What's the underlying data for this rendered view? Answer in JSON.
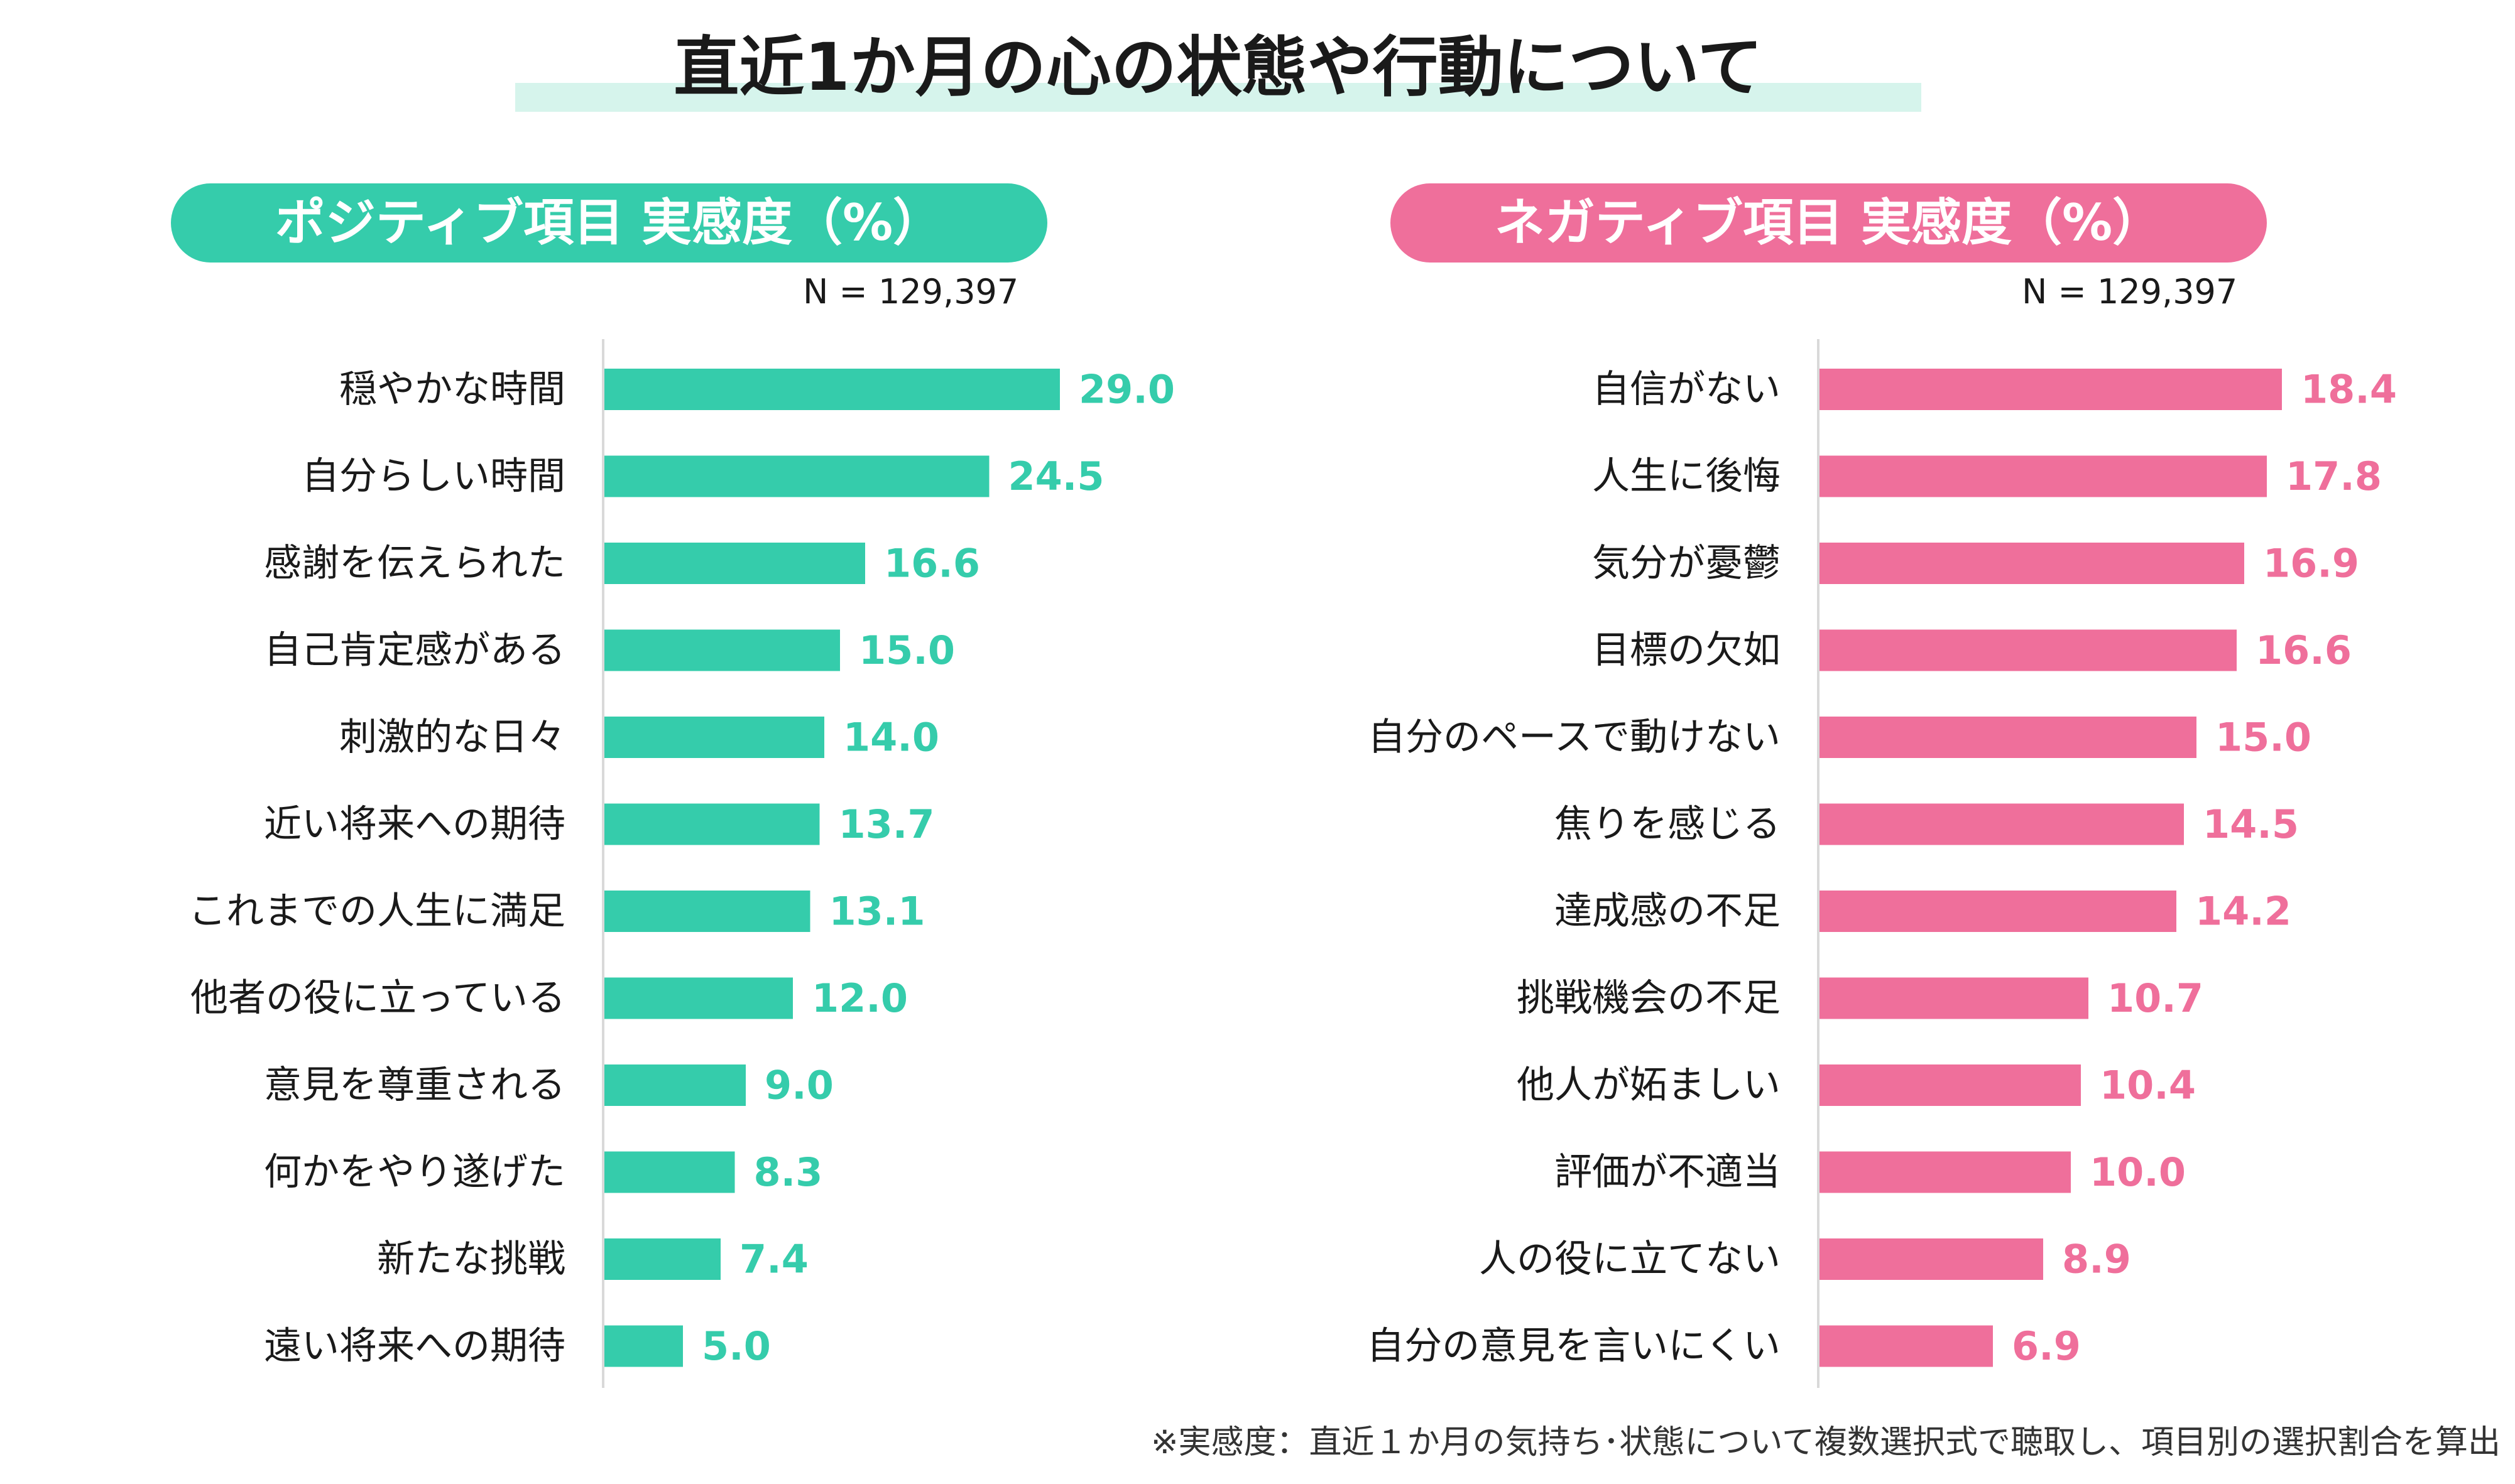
{
  "title": "直近1か月の心の状態や行動について",
  "footnote": "※実感度：直近１か月の気持ち･状態について複数選択式で聴取し、項目別の選択割合を算出",
  "colors": {
    "positive": "#35ccab",
    "negative": "#ef6f9b",
    "title_band": "#d6f4ec"
  },
  "chart_data": [
    {
      "type": "bar",
      "orientation": "horizontal",
      "title": "ポジティブ項目 実感度（%）",
      "note": "N = 129,397",
      "categories": [
        "穏やかな時間",
        "自分らしい時間",
        "感謝を伝えられた",
        "自己肯定感がある",
        "刺激的な日々",
        "近い将来への期待",
        "これまでの人生に満足",
        "他者の役に立っている",
        "意見を尊重される",
        "何かをやり遂げた",
        "新たな挑戦",
        "遠い将来への期待"
      ],
      "values": [
        29.0,
        24.5,
        16.6,
        15.0,
        14.0,
        13.7,
        13.1,
        12.0,
        9.0,
        8.3,
        7.4,
        5.0
      ],
      "value_labels": [
        "29.0",
        "24.5",
        "16.6",
        "15.0",
        "14.0",
        "13.7",
        "13.1",
        "12.0",
        "9.0",
        "8.3",
        "7.4",
        "5.0"
      ],
      "xlim": [
        0,
        40
      ],
      "color": "#35ccab",
      "grid": false
    },
    {
      "type": "bar",
      "orientation": "horizontal",
      "title": "ネガティブ項目 実感度（%）",
      "note": "N = 129,397",
      "categories": [
        "自信がない",
        "人生に後悔",
        "気分が憂鬱",
        "目標の欠如",
        "自分のペースで動けない",
        "焦りを感じる",
        "達成感の不足",
        "挑戦機会の不足",
        "他人が妬ましい",
        "評価が不適当",
        "人の役に立てない",
        "自分の意見を言いにくい"
      ],
      "values": [
        18.4,
        17.8,
        16.9,
        16.6,
        15.0,
        14.5,
        14.2,
        10.7,
        10.4,
        10.0,
        8.9,
        6.9
      ],
      "value_labels": [
        "18.4",
        "17.8",
        "16.9",
        "16.6",
        "15.0",
        "14.5",
        "14.2",
        "10.7",
        "10.4",
        "10.0",
        "8.9",
        "6.9"
      ],
      "xlim": [
        0,
        25
      ],
      "color": "#ef6f9b",
      "grid": false
    }
  ]
}
